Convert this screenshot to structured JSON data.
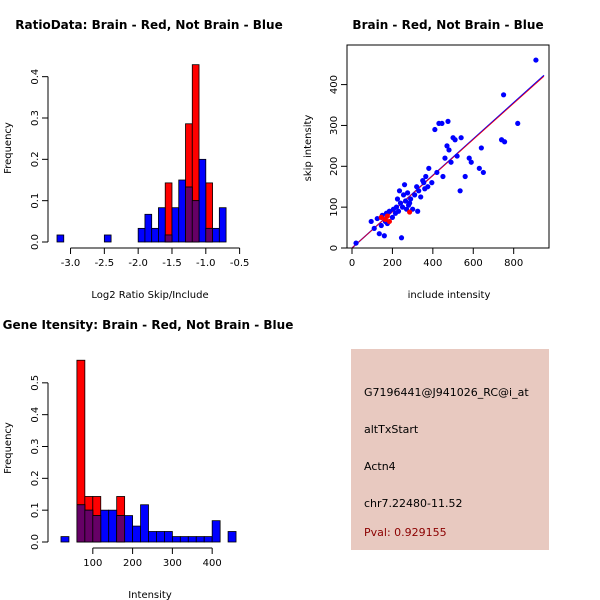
{
  "colors": {
    "red": "#ff0000",
    "blue": "#0000ff",
    "purple": "#660066",
    "panel_bg": "#e8c9c0",
    "pval": "#8b0000"
  },
  "chart_data": [
    {
      "type": "bar",
      "subtype": "overlaid-histogram",
      "title": "RatioData: Brain - Red, Not Brain - Blue",
      "xlabel": "Log2 Ratio Skip/Include",
      "ylabel": "Frequency",
      "xlim": [
        -3.2,
        -0.45
      ],
      "ylim": [
        0,
        0.45
      ],
      "xticks": [
        -3.0,
        -2.5,
        -2.0,
        -1.5,
        -1.0,
        -0.5
      ],
      "xtick_labels": [
        "-3.0",
        "-2.5",
        "-2.0",
        "-1.5",
        "-1.0",
        "-0.5"
      ],
      "yticks": [
        0.0,
        0.1,
        0.2,
        0.3,
        0.4
      ],
      "ytick_labels": [
        "0.0",
        "0.1",
        "0.2",
        "0.3",
        "0.4"
      ],
      "series": [
        {
          "name": "Brain",
          "color": "red",
          "bins": [
            [
              -1.6,
              -1.5,
              0.143
            ],
            [
              -1.5,
              -1.4,
              0.0
            ],
            [
              -1.4,
              -1.3,
              0.0
            ],
            [
              -1.3,
              -1.2,
              0.286
            ],
            [
              -1.2,
              -1.1,
              0.429
            ],
            [
              -1.1,
              -1.0,
              0.0
            ],
            [
              -1.0,
              -0.9,
              0.143
            ]
          ]
        },
        {
          "name": "Not Brain",
          "color": "blue",
          "bins": [
            [
              -3.2,
              -3.1,
              0.017
            ],
            [
              -2.5,
              -2.4,
              0.017
            ],
            [
              -2.0,
              -1.9,
              0.033
            ],
            [
              -1.9,
              -1.8,
              0.067
            ],
            [
              -1.8,
              -1.7,
              0.033
            ],
            [
              -1.7,
              -1.6,
              0.083
            ],
            [
              -1.6,
              -1.5,
              0.017
            ],
            [
              -1.5,
              -1.4,
              0.083
            ],
            [
              -1.4,
              -1.3,
              0.15
            ],
            [
              -1.3,
              -1.2,
              0.133
            ],
            [
              -1.2,
              -1.1,
              0.1
            ],
            [
              -1.1,
              -1.0,
              0.2
            ],
            [
              -1.0,
              -0.9,
              0.033
            ],
            [
              -0.9,
              -0.8,
              0.033
            ],
            [
              -0.8,
              -0.7,
              0.083
            ]
          ]
        }
      ]
    },
    {
      "type": "scatter",
      "title": "Brain - Red, Not Brain - Blue",
      "xlabel": "include intensity",
      "ylabel": "skip intensity",
      "xlim": [
        0,
        950
      ],
      "ylim": [
        0,
        470
      ],
      "xticks": [
        0,
        200,
        400,
        600,
        800
      ],
      "xtick_labels": [
        "0",
        "200",
        "400",
        "600",
        "800"
      ],
      "yticks": [
        0,
        100,
        200,
        300,
        400
      ],
      "ytick_labels": [
        "0",
        "100",
        "200",
        "300",
        "400"
      ],
      "fit_line": {
        "slope": 0.445,
        "intercept": 0,
        "colors": [
          "blue",
          "red"
        ]
      },
      "series": [
        {
          "name": "Not Brain",
          "color": "blue",
          "points": [
            [
              20,
              12
            ],
            [
              95,
              65
            ],
            [
              110,
              48
            ],
            [
              125,
              72
            ],
            [
              135,
              35
            ],
            [
              145,
              55
            ],
            [
              150,
              80
            ],
            [
              160,
              30
            ],
            [
              165,
              65
            ],
            [
              170,
              85
            ],
            [
              175,
              60
            ],
            [
              185,
              90
            ],
            [
              200,
              75
            ],
            [
              205,
              95
            ],
            [
              215,
              85
            ],
            [
              220,
              100
            ],
            [
              225,
              120
            ],
            [
              230,
              90
            ],
            [
              235,
              140
            ],
            [
              240,
              110
            ],
            [
              245,
              25
            ],
            [
              250,
              100
            ],
            [
              255,
              130
            ],
            [
              260,
              155
            ],
            [
              265,
              115
            ],
            [
              270,
              95
            ],
            [
              275,
              135
            ],
            [
              280,
              105
            ],
            [
              285,
              110
            ],
            [
              290,
              120
            ],
            [
              300,
              95
            ],
            [
              310,
              130
            ],
            [
              320,
              150
            ],
            [
              325,
              90
            ],
            [
              330,
              140
            ],
            [
              340,
              125
            ],
            [
              350,
              165
            ],
            [
              355,
              160
            ],
            [
              360,
              145
            ],
            [
              365,
              175
            ],
            [
              375,
              150
            ],
            [
              380,
              195
            ],
            [
              395,
              160
            ],
            [
              410,
              290
            ],
            [
              420,
              185
            ],
            [
              430,
              305
            ],
            [
              445,
              305
            ],
            [
              450,
              175
            ],
            [
              460,
              220
            ],
            [
              470,
              250
            ],
            [
              475,
              310
            ],
            [
              480,
              240
            ],
            [
              490,
              210
            ],
            [
              500,
              270
            ],
            [
              510,
              265
            ],
            [
              520,
              225
            ],
            [
              535,
              140
            ],
            [
              540,
              270
            ],
            [
              560,
              175
            ],
            [
              580,
              220
            ],
            [
              590,
              210
            ],
            [
              630,
              195
            ],
            [
              640,
              245
            ],
            [
              650,
              185
            ],
            [
              740,
              265
            ],
            [
              750,
              375
            ],
            [
              755,
              260
            ],
            [
              820,
              305
            ],
            [
              910,
              460
            ]
          ]
        },
        {
          "name": "Brain",
          "color": "red",
          "points": [
            [
              145,
              75
            ],
            [
              165,
              70
            ],
            [
              175,
              78
            ],
            [
              185,
              65
            ],
            [
              285,
              88
            ]
          ]
        }
      ]
    },
    {
      "type": "bar",
      "subtype": "overlaid-histogram",
      "title": "Gene Itensity: Brain - Red, Not Brain - Blue",
      "xlabel": "Intensity",
      "ylabel": "Frequency",
      "xlim": [
        10,
        480
      ],
      "ylim": [
        0,
        0.6
      ],
      "xticks": [
        100,
        200,
        300,
        400
      ],
      "xtick_labels": [
        "100",
        "200",
        "300",
        "400"
      ],
      "yticks": [
        0.0,
        0.1,
        0.2,
        0.3,
        0.4,
        0.5
      ],
      "ytick_labels": [
        "0.0",
        "0.1",
        "0.2",
        "0.3",
        "0.4",
        "0.5"
      ],
      "series": [
        {
          "name": "Brain",
          "color": "red",
          "bins": [
            [
              60,
              80,
              0.571
            ],
            [
              80,
              100,
              0.143
            ],
            [
              100,
              120,
              0.143
            ],
            [
              120,
              140,
              0.0
            ],
            [
              140,
              160,
              0.0
            ],
            [
              160,
              180,
              0.143
            ]
          ]
        },
        {
          "name": "Not Brain",
          "color": "blue",
          "bins": [
            [
              20,
              40,
              0.017
            ],
            [
              60,
              80,
              0.117
            ],
            [
              80,
              100,
              0.1
            ],
            [
              100,
              120,
              0.083
            ],
            [
              120,
              140,
              0.1
            ],
            [
              140,
              160,
              0.1
            ],
            [
              160,
              180,
              0.083
            ],
            [
              180,
              200,
              0.083
            ],
            [
              200,
              220,
              0.05
            ],
            [
              220,
              240,
              0.117
            ],
            [
              240,
              260,
              0.033
            ],
            [
              260,
              280,
              0.033
            ],
            [
              280,
              300,
              0.033
            ],
            [
              300,
              320,
              0.017
            ],
            [
              320,
              340,
              0.017
            ],
            [
              340,
              360,
              0.017
            ],
            [
              360,
              380,
              0.017
            ],
            [
              380,
              400,
              0.017
            ],
            [
              400,
              420,
              0.067
            ],
            [
              440,
              460,
              0.033
            ]
          ]
        }
      ]
    }
  ],
  "info_panel": {
    "probe_id": "G7196441@J941026_RC@i_at",
    "event_type": "altTxStart",
    "gene_symbol": "Actn4",
    "location": "chr7.22480-11.52",
    "pval": "Pval: 0.929155"
  }
}
